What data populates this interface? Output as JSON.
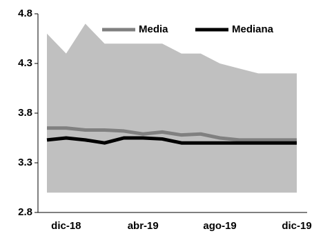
{
  "chart_data": {
    "type": "line",
    "categories": [
      null,
      "dic-18",
      null,
      null,
      null,
      "abr-19",
      null,
      null,
      null,
      "ago-19",
      null,
      null,
      null,
      "dic-19"
    ],
    "band": {
      "color": "#c0c0c0",
      "upper": [
        4.6,
        4.4,
        4.7,
        4.5,
        4.5,
        4.5,
        4.5,
        4.4,
        4.4,
        4.3,
        4.25,
        4.2,
        4.2,
        4.2
      ],
      "lower": [
        3.0,
        3.0,
        3.0,
        3.0,
        3.0,
        3.0,
        3.0,
        3.0,
        3.0,
        3.0,
        3.0,
        3.0,
        3.0,
        3.0
      ]
    },
    "series": [
      {
        "name": "Media",
        "color": "#808080",
        "values": [
          3.65,
          3.65,
          3.63,
          3.63,
          3.62,
          3.59,
          3.61,
          3.58,
          3.59,
          3.55,
          3.53,
          3.53,
          3.53,
          3.53
        ]
      },
      {
        "name": "Mediana",
        "color": "#000000",
        "values": [
          3.53,
          3.55,
          3.53,
          3.5,
          3.55,
          3.55,
          3.54,
          3.5,
          3.5,
          3.5,
          3.5,
          3.5,
          3.5,
          3.5
        ]
      }
    ],
    "ylim": [
      2.8,
      4.8
    ],
    "yticks": [
      2.8,
      3.3,
      3.8,
      4.3,
      4.8
    ],
    "legend": "top"
  }
}
